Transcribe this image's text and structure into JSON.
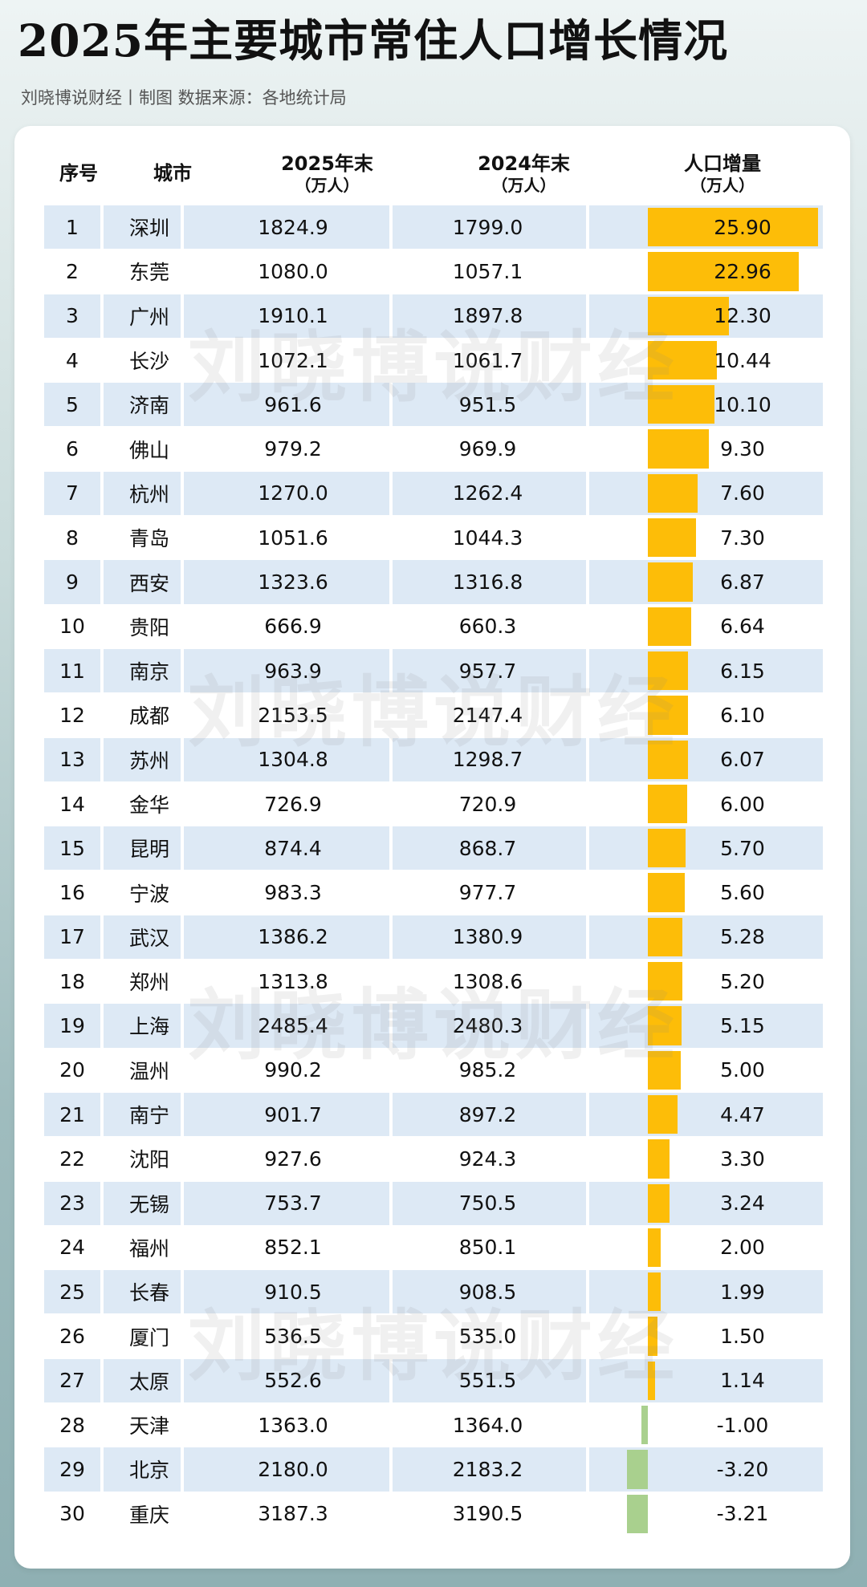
{
  "page": {
    "title": "2025年主要城市常住人口增长情况",
    "subtitle": "刘晓博说财经丨制图  数据来源：各地统计局",
    "watermark": "刘晓博说财经"
  },
  "table": {
    "headers": {
      "rank": "序号",
      "city": "城市",
      "y2025": "2025年末",
      "y2025_unit": "（万人）",
      "y2024": "2024年末",
      "y2024_unit": "（万人）",
      "delta": "人口增量",
      "delta_unit": "（万人）"
    }
  },
  "colors": {
    "positive_bar": "#fdbd08",
    "negative_bar": "#a9d08e",
    "row_stripe": "#dde9f5"
  },
  "chart_data": {
    "type": "table",
    "title": "2025年主要城市常住人口增长情况",
    "columns": [
      "序号",
      "城市",
      "2025年末（万人）",
      "2024年末（万人）",
      "人口增量（万人）"
    ],
    "rows": [
      {
        "rank": "1",
        "city": "深圳",
        "y2025": "1824.9",
        "y2024": "1799.0",
        "delta": "25.90",
        "delta_value": 25.9
      },
      {
        "rank": "2",
        "city": "东莞",
        "y2025": "1080.0",
        "y2024": "1057.1",
        "delta": "22.96",
        "delta_value": 22.96
      },
      {
        "rank": "3",
        "city": "广州",
        "y2025": "1910.1",
        "y2024": "1897.8",
        "delta": "12.30",
        "delta_value": 12.3
      },
      {
        "rank": "4",
        "city": "长沙",
        "y2025": "1072.1",
        "y2024": "1061.7",
        "delta": "10.44",
        "delta_value": 10.44
      },
      {
        "rank": "5",
        "city": "济南",
        "y2025": "961.6",
        "y2024": "951.5",
        "delta": "10.10",
        "delta_value": 10.1
      },
      {
        "rank": "6",
        "city": "佛山",
        "y2025": "979.2",
        "y2024": "969.9",
        "delta": "9.30",
        "delta_value": 9.3
      },
      {
        "rank": "7",
        "city": "杭州",
        "y2025": "1270.0",
        "y2024": "1262.4",
        "delta": "7.60",
        "delta_value": 7.6
      },
      {
        "rank": "8",
        "city": "青岛",
        "y2025": "1051.6",
        "y2024": "1044.3",
        "delta": "7.30",
        "delta_value": 7.3
      },
      {
        "rank": "9",
        "city": "西安",
        "y2025": "1323.6",
        "y2024": "1316.8",
        "delta": "6.87",
        "delta_value": 6.87
      },
      {
        "rank": "10",
        "city": "贵阳",
        "y2025": "666.9",
        "y2024": "660.3",
        "delta": "6.64",
        "delta_value": 6.64
      },
      {
        "rank": "11",
        "city": "南京",
        "y2025": "963.9",
        "y2024": "957.7",
        "delta": "6.15",
        "delta_value": 6.15
      },
      {
        "rank": "12",
        "city": "成都",
        "y2025": "2153.5",
        "y2024": "2147.4",
        "delta": "6.10",
        "delta_value": 6.1
      },
      {
        "rank": "13",
        "city": "苏州",
        "y2025": "1304.8",
        "y2024": "1298.7",
        "delta": "6.07",
        "delta_value": 6.07
      },
      {
        "rank": "14",
        "city": "金华",
        "y2025": "726.9",
        "y2024": "720.9",
        "delta": "6.00",
        "delta_value": 6.0
      },
      {
        "rank": "15",
        "city": "昆明",
        "y2025": "874.4",
        "y2024": "868.7",
        "delta": "5.70",
        "delta_value": 5.7
      },
      {
        "rank": "16",
        "city": "宁波",
        "y2025": "983.3",
        "y2024": "977.7",
        "delta": "5.60",
        "delta_value": 5.6
      },
      {
        "rank": "17",
        "city": "武汉",
        "y2025": "1386.2",
        "y2024": "1380.9",
        "delta": "5.28",
        "delta_value": 5.28
      },
      {
        "rank": "18",
        "city": "郑州",
        "y2025": "1313.8",
        "y2024": "1308.6",
        "delta": "5.20",
        "delta_value": 5.2
      },
      {
        "rank": "19",
        "city": "上海",
        "y2025": "2485.4",
        "y2024": "2480.3",
        "delta": "5.15",
        "delta_value": 5.15
      },
      {
        "rank": "20",
        "city": "温州",
        "y2025": "990.2",
        "y2024": "985.2",
        "delta": "5.00",
        "delta_value": 5.0
      },
      {
        "rank": "21",
        "city": "南宁",
        "y2025": "901.7",
        "y2024": "897.2",
        "delta": "4.47",
        "delta_value": 4.47
      },
      {
        "rank": "22",
        "city": "沈阳",
        "y2025": "927.6",
        "y2024": "924.3",
        "delta": "3.30",
        "delta_value": 3.3
      },
      {
        "rank": "23",
        "city": "无锡",
        "y2025": "753.7",
        "y2024": "750.5",
        "delta": "3.24",
        "delta_value": 3.24
      },
      {
        "rank": "24",
        "city": "福州",
        "y2025": "852.1",
        "y2024": "850.1",
        "delta": "2.00",
        "delta_value": 2.0
      },
      {
        "rank": "25",
        "city": "长春",
        "y2025": "910.5",
        "y2024": "908.5",
        "delta": "1.99",
        "delta_value": 1.99
      },
      {
        "rank": "26",
        "city": "厦门",
        "y2025": "536.5",
        "y2024": "535.0",
        "delta": "1.50",
        "delta_value": 1.5
      },
      {
        "rank": "27",
        "city": "太原",
        "y2025": "552.6",
        "y2024": "551.5",
        "delta": "1.14",
        "delta_value": 1.14
      },
      {
        "rank": "28",
        "city": "天津",
        "y2025": "1363.0",
        "y2024": "1364.0",
        "delta": "-1.00",
        "delta_value": -1.0
      },
      {
        "rank": "29",
        "city": "北京",
        "y2025": "2180.0",
        "y2024": "2183.2",
        "delta": "-3.20",
        "delta_value": -3.2
      },
      {
        "rank": "30",
        "city": "重庆",
        "y2025": "3187.3",
        "y2024": "3190.5",
        "delta": "-3.21",
        "delta_value": -3.21
      }
    ],
    "grid": false,
    "legend": "none"
  }
}
